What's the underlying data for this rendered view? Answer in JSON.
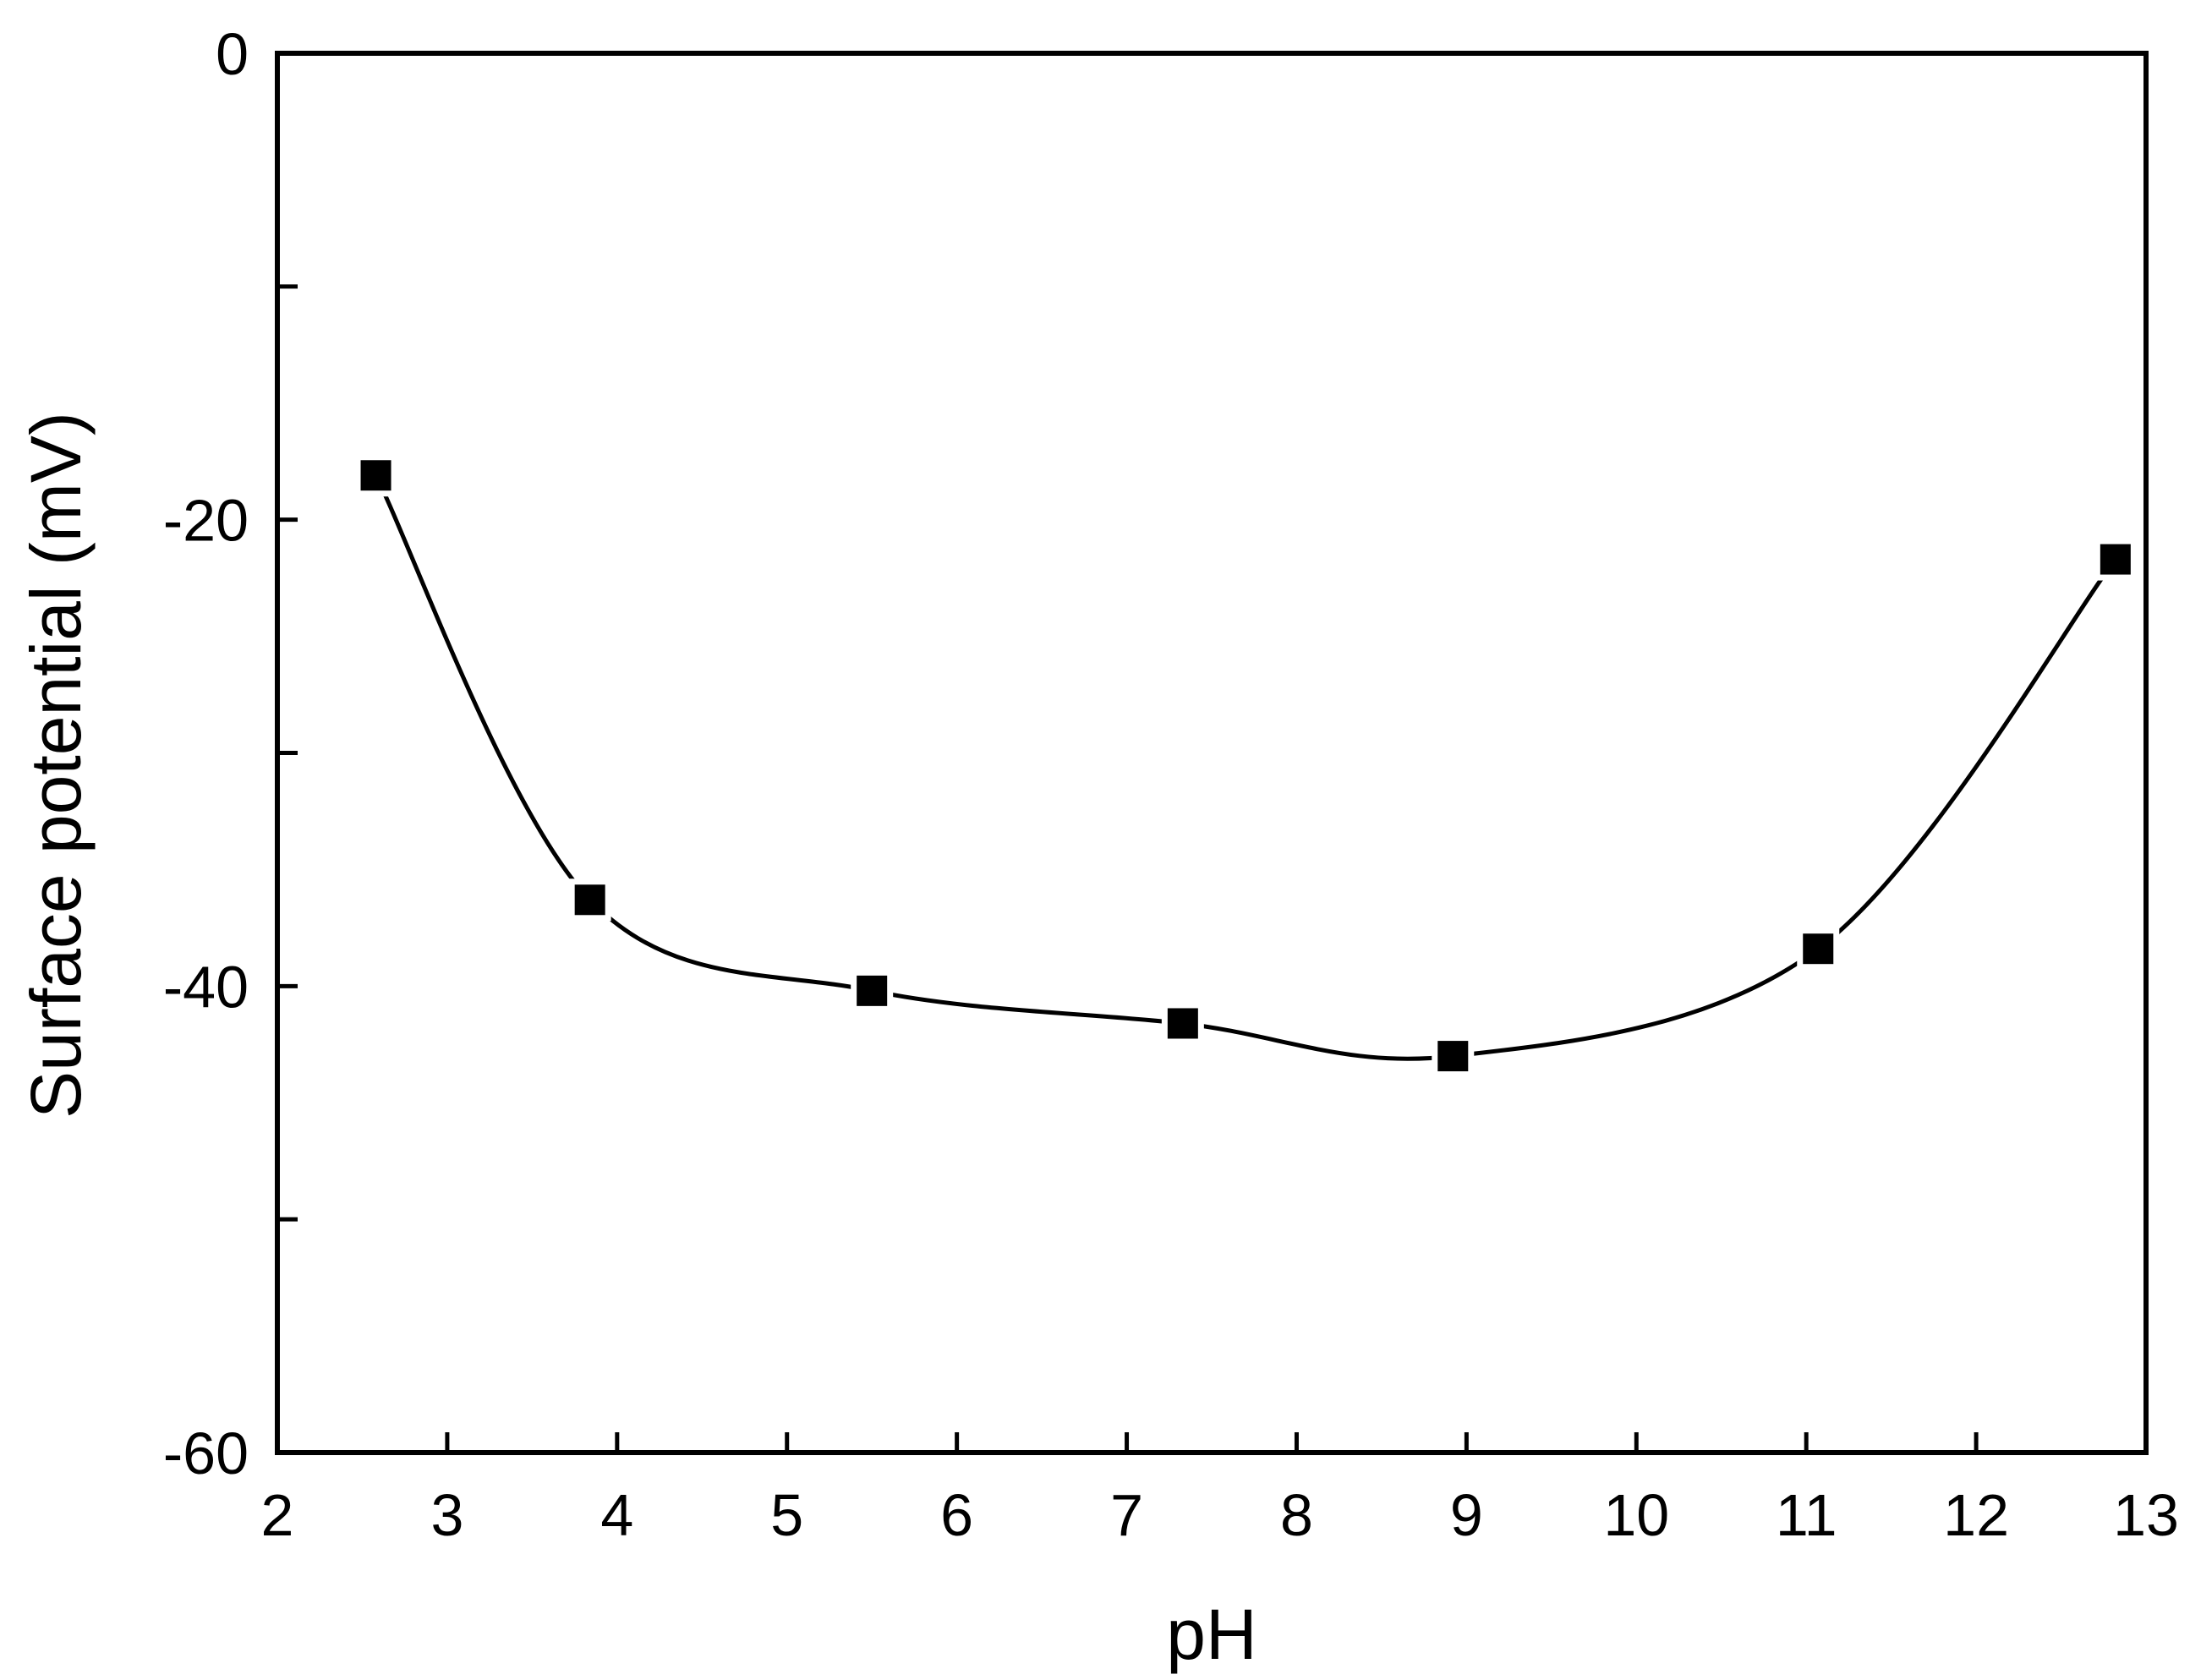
{
  "chart_data": {
    "type": "scatter",
    "title": "",
    "xlabel": "pH",
    "ylabel": "Surface potential (mV)",
    "xlim": [
      2,
      13
    ],
    "ylim": [
      -60,
      0
    ],
    "x_ticks": [
      2,
      3,
      4,
      5,
      6,
      7,
      8,
      9,
      10,
      11,
      12,
      13
    ],
    "y_ticks": [
      -60,
      -50,
      -40,
      -30,
      -20,
      -10,
      0
    ],
    "y_tick_labels": [
      "-60",
      "",
      "-40",
      "",
      "-20",
      "",
      "0"
    ],
    "grid": false,
    "legend": "none",
    "marker": "square",
    "line": "smooth",
    "series": [
      {
        "x": [
          2.58,
          3.84,
          5.5,
          7.33,
          8.92,
          11.07,
          12.82
        ],
        "y": [
          -18.1,
          -36.3,
          -40.2,
          -41.6,
          -43.0,
          -38.4,
          -21.7
        ]
      }
    ]
  }
}
